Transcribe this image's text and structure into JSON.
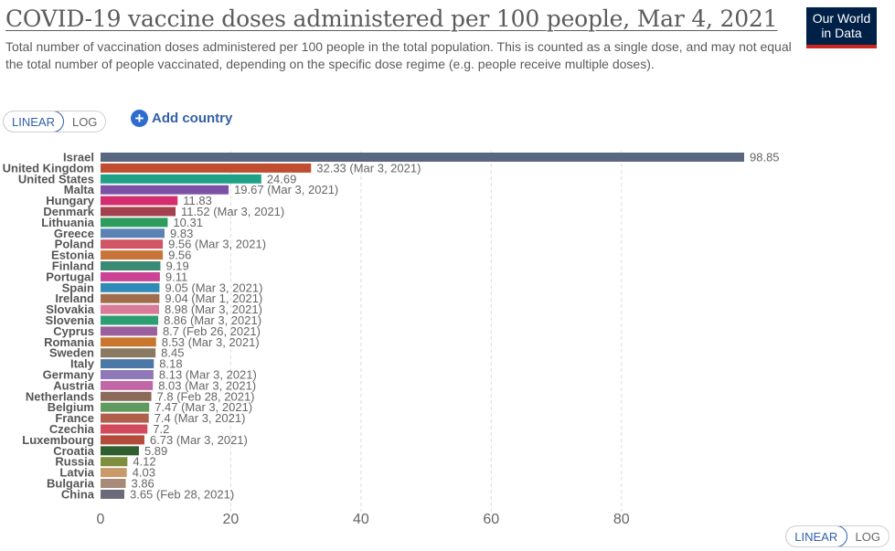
{
  "header": {
    "title": "COVID-19 vaccine doses administered per 100 people, Mar 4, 2021",
    "subtitle": "Total number of vaccination doses administered per 100 people in the total population. This is counted as a single dose, and may not equal the total number of people vaccinated, depending on the specific dose regime (e.g. people receive multiple doses).",
    "logo_line1": "Our World",
    "logo_line2": "in Data"
  },
  "controls": {
    "linear_label": "LINEAR",
    "log_label": "LOG",
    "add_country_label": "Add country",
    "add_country_icon": "+"
  },
  "colors": {
    "axis_text": "#666666",
    "gridline": "#dddddd",
    "accent": "#3360a9"
  },
  "chart_data": {
    "type": "bar",
    "orientation": "horizontal",
    "title": "COVID-19 vaccine doses administered per 100 people, Mar 4, 2021",
    "xlim": [
      0,
      98.85
    ],
    "xticks": [
      0,
      20,
      40,
      60,
      80
    ],
    "grid": true,
    "series": [
      {
        "country": "Israel",
        "value": 98.85,
        "note": "",
        "color": "#5a6780"
      },
      {
        "country": "United Kingdom",
        "value": 32.33,
        "note": "(Mar 3, 2021)",
        "color": "#c04d30"
      },
      {
        "country": "United States",
        "value": 24.69,
        "note": "",
        "color": "#1fa186"
      },
      {
        "country": "Malta",
        "value": 19.67,
        "note": "(Mar 3, 2021)",
        "color": "#7b52a8"
      },
      {
        "country": "Hungary",
        "value": 11.83,
        "note": "",
        "color": "#d42e6e"
      },
      {
        "country": "Denmark",
        "value": 11.52,
        "note": "(Mar 3, 2021)",
        "color": "#a3414e"
      },
      {
        "country": "Lithuania",
        "value": 10.31,
        "note": "",
        "color": "#2d9c5c"
      },
      {
        "country": "Greece",
        "value": 9.83,
        "note": "",
        "color": "#5a82b4"
      },
      {
        "country": "Poland",
        "value": 9.56,
        "note": "(Mar 3, 2021)",
        "color": "#d15563"
      },
      {
        "country": "Estonia",
        "value": 9.56,
        "note": "",
        "color": "#c8733a"
      },
      {
        "country": "Finland",
        "value": 9.19,
        "note": "",
        "color": "#3a8a76"
      },
      {
        "country": "Portugal",
        "value": 9.11,
        "note": "",
        "color": "#cc4294"
      },
      {
        "country": "Spain",
        "value": 9.05,
        "note": "(Mar 3, 2021)",
        "color": "#2f8ab8"
      },
      {
        "country": "Ireland",
        "value": 9.04,
        "note": "(Mar 1, 2021)",
        "color": "#a06d4c"
      },
      {
        "country": "Slovakia",
        "value": 8.98,
        "note": "(Mar 3, 2021)",
        "color": "#d87a98"
      },
      {
        "country": "Slovenia",
        "value": 8.86,
        "note": "(Mar 3, 2021)",
        "color": "#2d9e72"
      },
      {
        "country": "Cyprus",
        "value": 8.7,
        "note": "(Feb 26, 2021)",
        "color": "#9a5f9c"
      },
      {
        "country": "Romania",
        "value": 8.53,
        "note": "(Mar 3, 2021)",
        "color": "#c9762d"
      },
      {
        "country": "Sweden",
        "value": 8.45,
        "note": "",
        "color": "#8a7a62"
      },
      {
        "country": "Italy",
        "value": 8.18,
        "note": "",
        "color": "#4c78a8"
      },
      {
        "country": "Germany",
        "value": 8.13,
        "note": "(Mar 3, 2021)",
        "color": "#8e78b8"
      },
      {
        "country": "Austria",
        "value": 8.03,
        "note": "(Mar 3, 2021)",
        "color": "#c267a6"
      },
      {
        "country": "Netherlands",
        "value": 7.8,
        "note": "(Feb 28, 2021)",
        "color": "#8c6a5a"
      },
      {
        "country": "Belgium",
        "value": 7.47,
        "note": "(Mar 3, 2021)",
        "color": "#5f9a5e"
      },
      {
        "country": "France",
        "value": 7.4,
        "note": "(Mar 3, 2021)",
        "color": "#b0604a"
      },
      {
        "country": "Czechia",
        "value": 7.2,
        "note": "",
        "color": "#d1495a"
      },
      {
        "country": "Luxembourg",
        "value": 6.73,
        "note": "(Mar 3, 2021)",
        "color": "#b34a3a"
      },
      {
        "country": "Croatia",
        "value": 5.89,
        "note": "",
        "color": "#2f5f2f"
      },
      {
        "country": "Russia",
        "value": 4.12,
        "note": "",
        "color": "#7d8f3c"
      },
      {
        "country": "Latvia",
        "value": 4.03,
        "note": "",
        "color": "#c89a6a"
      },
      {
        "country": "Bulgaria",
        "value": 3.86,
        "note": "",
        "color": "#a88a78"
      },
      {
        "country": "China",
        "value": 3.65,
        "note": "(Feb 28, 2021)",
        "color": "#6a6a7a"
      }
    ]
  }
}
